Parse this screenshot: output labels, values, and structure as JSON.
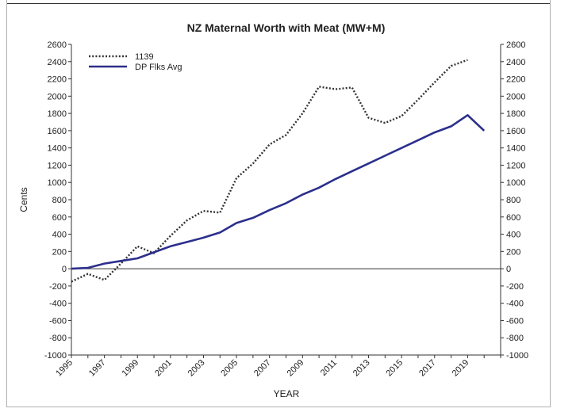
{
  "chart_data": {
    "type": "line",
    "title": "NZ Maternal Worth with Meat (MW+M)",
    "xlabel": "YEAR",
    "ylabel": "Cents",
    "xlim": [
      1995,
      2021
    ],
    "ylim": [
      -1000,
      2600
    ],
    "y_ticks": [
      2600,
      2400,
      2200,
      2000,
      1800,
      1600,
      1400,
      1200,
      1000,
      800,
      600,
      400,
      200,
      0,
      -200,
      -400,
      -600,
      -800,
      -1000
    ],
    "x_tick_labels": [
      "1995",
      "1997",
      "1999",
      "2001",
      "2003",
      "2005",
      "2007",
      "2009",
      "2011",
      "2013",
      "2015",
      "2017",
      "2019"
    ],
    "grid": false,
    "legend_position": "top-left",
    "series": [
      {
        "name": "1139",
        "style": "dotted",
        "color": "#333333",
        "x": [
          1995,
          1996,
          1997,
          1998,
          1999,
          2000,
          2001,
          2002,
          2003,
          2004,
          2005,
          2006,
          2007,
          2008,
          2009,
          2010,
          2011,
          2012,
          2013,
          2014,
          2015,
          2016,
          2017,
          2018,
          2019
        ],
        "y": [
          -150,
          -60,
          -130,
          60,
          260,
          180,
          380,
          560,
          670,
          650,
          1050,
          1220,
          1440,
          1550,
          1800,
          2110,
          2080,
          2100,
          1750,
          1690,
          1770,
          1960,
          2160,
          2350,
          2420
        ]
      },
      {
        "name": "DP Flks Avg",
        "style": "solid",
        "color": "#2b2f8c",
        "x": [
          1995,
          1996,
          1997,
          1998,
          1999,
          2000,
          2001,
          2002,
          2003,
          2004,
          2005,
          2006,
          2007,
          2008,
          2009,
          2010,
          2011,
          2012,
          2013,
          2014,
          2015,
          2016,
          2017,
          2018,
          2019,
          2020
        ],
        "y": [
          0,
          10,
          60,
          90,
          120,
          190,
          260,
          310,
          360,
          420,
          530,
          590,
          680,
          760,
          860,
          940,
          1040,
          1130,
          1220,
          1310,
          1400,
          1490,
          1580,
          1650,
          1780,
          1600
        ]
      }
    ]
  }
}
